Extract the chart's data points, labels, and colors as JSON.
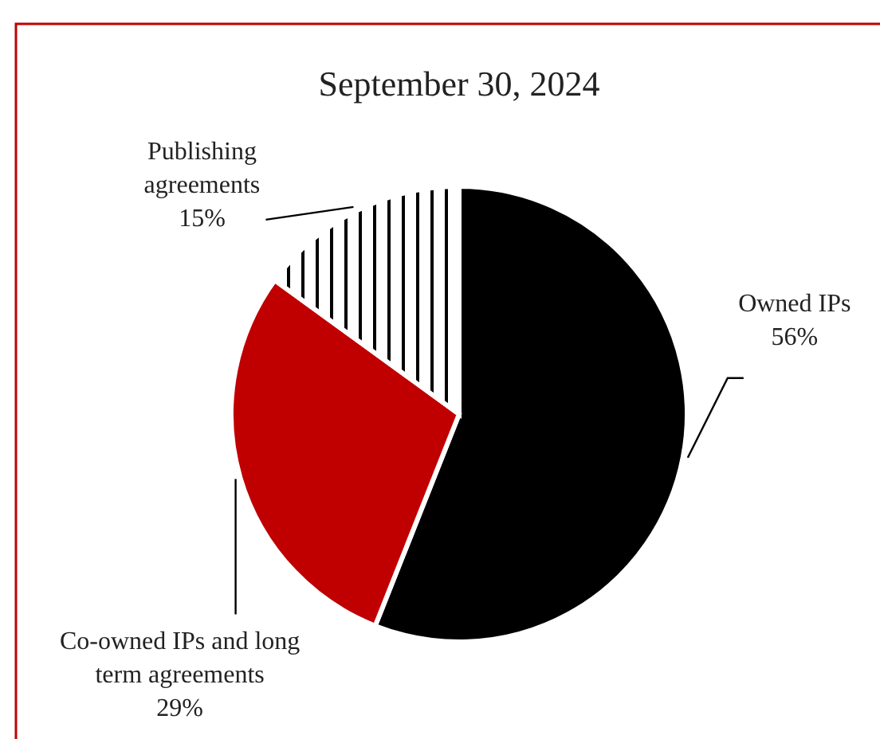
{
  "chart_data": {
    "type": "pie",
    "title": "September 30, 2024",
    "categories": [
      "Owned IPs",
      "Co-owned IPs and long term agreements",
      "Publishing agreements"
    ],
    "values": [
      56,
      29,
      15
    ],
    "colors": [
      "#000000",
      "#c00000",
      "#ffffff"
    ],
    "value_labels": [
      "56%",
      "29%",
      "15%"
    ]
  }
}
